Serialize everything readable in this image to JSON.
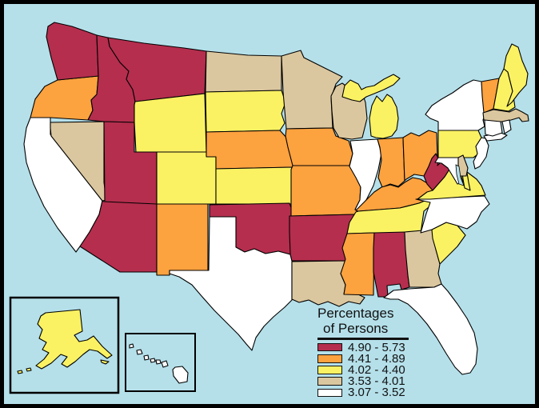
{
  "figure": {
    "background_color": "#B5E0EA",
    "frame_color": "#000000",
    "state_border_color": "#000000"
  },
  "legend": {
    "title_line1": "Percentages",
    "title_line2": "of Persons"
  },
  "map": {
    "categories": [
      {
        "id": "c1",
        "label": "4.90 - 5.73",
        "color": "#B52E4E"
      },
      {
        "id": "c2",
        "label": "4.41 - 4.89",
        "color": "#FCA23F"
      },
      {
        "id": "c3",
        "label": "4.02 - 4.40",
        "color": "#FBF263"
      },
      {
        "id": "c4",
        "label": "3.53 - 4.01",
        "color": "#DBC79F"
      },
      {
        "id": "c5",
        "label": "3.07 - 3.52",
        "color": "#FFFFFF"
      }
    ],
    "states": [
      {
        "abbr": "CA",
        "name": "California",
        "category": "c5"
      },
      {
        "abbr": "NV",
        "name": "Nevada",
        "category": "c4"
      },
      {
        "abbr": "OR",
        "name": "Oregon",
        "category": "c2"
      },
      {
        "abbr": "WA",
        "name": "Washington",
        "category": "c1"
      },
      {
        "abbr": "ID",
        "name": "Idaho",
        "category": "c1"
      },
      {
        "abbr": "MT",
        "name": "Montana",
        "category": "c1"
      },
      {
        "abbr": "WY",
        "name": "Wyoming",
        "category": "c3"
      },
      {
        "abbr": "UT",
        "name": "Utah",
        "category": "c1"
      },
      {
        "abbr": "CO",
        "name": "Colorado",
        "category": "c3"
      },
      {
        "abbr": "AZ",
        "name": "Arizona",
        "category": "c1"
      },
      {
        "abbr": "NM",
        "name": "New Mexico",
        "category": "c2"
      },
      {
        "abbr": "ND",
        "name": "North Dakota",
        "category": "c4"
      },
      {
        "abbr": "SD",
        "name": "South Dakota",
        "category": "c3"
      },
      {
        "abbr": "NE",
        "name": "Nebraska",
        "category": "c2"
      },
      {
        "abbr": "KS",
        "name": "Kansas",
        "category": "c3"
      },
      {
        "abbr": "OK",
        "name": "Oklahoma",
        "category": "c1"
      },
      {
        "abbr": "TX",
        "name": "Texas",
        "category": "c5"
      },
      {
        "abbr": "MN",
        "name": "Minnesota",
        "category": "c4"
      },
      {
        "abbr": "IA",
        "name": "Iowa",
        "category": "c2"
      },
      {
        "abbr": "MO",
        "name": "Missouri",
        "category": "c2"
      },
      {
        "abbr": "AR",
        "name": "Arkansas",
        "category": "c1"
      },
      {
        "abbr": "LA",
        "name": "Louisiana",
        "category": "c4"
      },
      {
        "abbr": "WI",
        "name": "Wisconsin",
        "category": "c4"
      },
      {
        "abbr": "IL",
        "name": "Illinois",
        "category": "c5"
      },
      {
        "abbr": "MI",
        "name": "Michigan",
        "category": "c3"
      },
      {
        "abbr": "IN",
        "name": "Indiana",
        "category": "c2"
      },
      {
        "abbr": "OH",
        "name": "Ohio",
        "category": "c2"
      },
      {
        "abbr": "KY",
        "name": "Kentucky",
        "category": "c2"
      },
      {
        "abbr": "TN",
        "name": "Tennessee",
        "category": "c3"
      },
      {
        "abbr": "MS",
        "name": "Mississippi",
        "category": "c2"
      },
      {
        "abbr": "AL",
        "name": "Alabama",
        "category": "c1"
      },
      {
        "abbr": "GA",
        "name": "Georgia",
        "category": "c4"
      },
      {
        "abbr": "FL",
        "name": "Florida",
        "category": "c5"
      },
      {
        "abbr": "SC",
        "name": "South Carolina",
        "category": "c3"
      },
      {
        "abbr": "NC",
        "name": "North Carolina",
        "category": "c5"
      },
      {
        "abbr": "VA",
        "name": "Virginia",
        "category": "c3"
      },
      {
        "abbr": "WV",
        "name": "West Virginia",
        "category": "c1"
      },
      {
        "abbr": "PA",
        "name": "Pennsylvania",
        "category": "c3"
      },
      {
        "abbr": "NY",
        "name": "New York",
        "category": "c5"
      },
      {
        "abbr": "NJ",
        "name": "New Jersey",
        "category": "c5"
      },
      {
        "abbr": "VT",
        "name": "Vermont",
        "category": "c2"
      },
      {
        "abbr": "NH",
        "name": "New Hampshire",
        "category": "c3"
      },
      {
        "abbr": "ME",
        "name": "Maine",
        "category": "c3"
      },
      {
        "abbr": "MA",
        "name": "Massachusetts",
        "category": "c4"
      },
      {
        "abbr": "CT",
        "name": "Connecticut",
        "category": "c5"
      },
      {
        "abbr": "RI",
        "name": "Rhode Island",
        "category": "c5"
      },
      {
        "abbr": "MD",
        "name": "Maryland",
        "category": "c5"
      },
      {
        "abbr": "DE",
        "name": "Delaware",
        "category": "c4"
      },
      {
        "abbr": "AK",
        "name": "Alaska",
        "category": "c3"
      },
      {
        "abbr": "HI",
        "name": "Hawaii",
        "category": "c5"
      }
    ]
  }
}
